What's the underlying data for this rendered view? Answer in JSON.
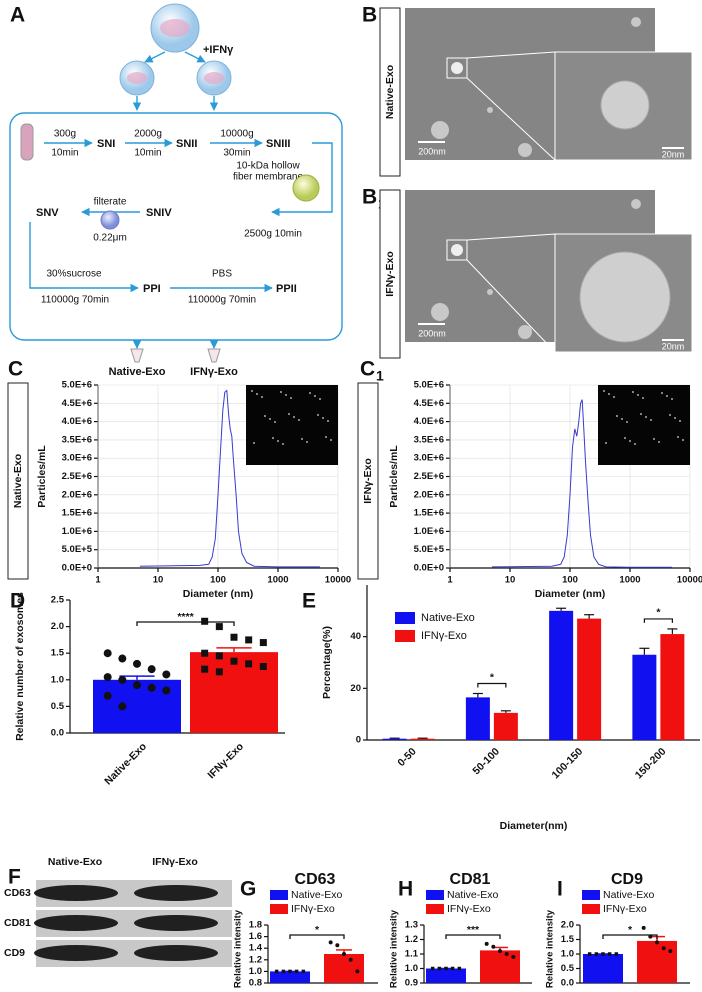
{
  "diagram": {
    "letter": "A",
    "treatment": "+IFNγ",
    "step1_speed": "300g",
    "step1_time": "10min",
    "sn1": "SNI",
    "step2_speed": "2000g",
    "step2_time": "10min",
    "sn2": "SNII",
    "step3_speed": "10000g",
    "step3_time": "30min",
    "sn3": "SNIII",
    "membrane_line1": "10-kDa hollow",
    "membrane_line2": "fiber membrane",
    "step4": "2500g  10min",
    "sn4": "SNIV",
    "filter_label": "filterate",
    "filter_size": "0.22μm",
    "sn5": "SNV",
    "step5_medium": "30%sucrose",
    "step5": "110000g  70min",
    "pp1": "PPI",
    "step6_medium": "PBS",
    "step6": "110000g  70min",
    "pp2": "PPII",
    "product1": "Native-Exo",
    "product2": "IFNγ-Exo"
  },
  "tem": [
    {
      "letter": "B",
      "side_label": "Native-Exo",
      "scale_overview": "200nm",
      "scale_zoom": "20nm"
    },
    {
      "letter": "B",
      "subscript": "1",
      "side_label": "IFNγ-Exo",
      "scale_overview": "200nm",
      "scale_zoom": "20nm"
    }
  ],
  "blot": {
    "letter": "F",
    "lanes": [
      "Native-Exo",
      "IFNγ-Exo"
    ],
    "proteins": [
      "CD63",
      "CD81",
      "CD9"
    ]
  },
  "chart_data": [
    {
      "type": "line",
      "panel": "C",
      "side_label": "Native-Exo",
      "xlabel": "Diameter (nm)",
      "ylabel": "Particles/mL",
      "xscale": "log",
      "grid": true,
      "color": "#3a3ad0",
      "x": [
        5,
        50,
        70,
        80,
        90,
        100,
        110,
        120,
        130,
        140,
        150,
        160,
        170,
        180,
        200,
        220,
        250,
        300,
        400,
        1000,
        5000
      ],
      "values": [
        50000,
        70000,
        100000,
        300000,
        800000,
        2000000,
        3200000,
        4300000,
        4800000,
        4850000,
        4200000,
        3800000,
        3600000,
        3000000,
        2000000,
        1000000,
        400000,
        150000,
        50000,
        30000,
        30000
      ],
      "xlim": [
        1,
        10000
      ],
      "xticks": [
        1,
        10,
        100,
        1000,
        10000
      ],
      "ylim": [
        0,
        5000000
      ],
      "yticks": [
        {
          "value": 0,
          "label": "0.0E+0"
        },
        {
          "value": 500000,
          "label": "5.0E+5"
        },
        {
          "value": 1000000,
          "label": "1.0E+6"
        },
        {
          "value": 1500000,
          "label": "1.5E+6"
        },
        {
          "value": 2000000,
          "label": "2.0E+6"
        },
        {
          "value": 2500000,
          "label": "2.5E+6"
        },
        {
          "value": 3000000,
          "label": "3.0E+6"
        },
        {
          "value": 3500000,
          "label": "3.5E+6"
        },
        {
          "value": 4000000,
          "label": "4.0E+6"
        },
        {
          "value": 4500000,
          "label": "4.5E+6"
        },
        {
          "value": 5000000,
          "label": "5.0E+6"
        }
      ]
    },
    {
      "type": "line",
      "panel": "C",
      "panel_subscript": "1",
      "side_label": "IFNγ-Exo",
      "xlabel": "Diameter (nm)",
      "ylabel": "Particles/mL",
      "xscale": "log",
      "grid": true,
      "color": "#3a3ad0",
      "x": [
        5,
        50,
        70,
        80,
        90,
        100,
        110,
        120,
        130,
        140,
        150,
        160,
        170,
        180,
        200,
        220,
        250,
        300,
        400,
        1000,
        5000
      ],
      "values": [
        30000,
        50000,
        100000,
        300000,
        900000,
        2000000,
        3300000,
        3800000,
        3600000,
        4000000,
        4500000,
        4600000,
        3800000,
        3000000,
        1800000,
        900000,
        300000,
        100000,
        30000,
        20000,
        20000
      ],
      "xlim": [
        1,
        10000
      ],
      "xticks": [
        1,
        10,
        100,
        1000,
        10000
      ],
      "ylim": [
        0,
        5000000
      ],
      "yticks": [
        {
          "value": 0,
          "label": "0.0E+0"
        },
        {
          "value": 500000,
          "label": "5.0E+5"
        },
        {
          "value": 1000000,
          "label": "1.0E+6"
        },
        {
          "value": 1500000,
          "label": "1.5E+6"
        },
        {
          "value": 2000000,
          "label": "2.0E+6"
        },
        {
          "value": 2500000,
          "label": "2.5E+6"
        },
        {
          "value": 3000000,
          "label": "3.0E+6"
        },
        {
          "value": 3500000,
          "label": "3.5E+6"
        },
        {
          "value": 4000000,
          "label": "4.0E+6"
        },
        {
          "value": 4500000,
          "label": "4.5E+6"
        },
        {
          "value": 5000000,
          "label": "5.0E+6"
        }
      ]
    },
    {
      "type": "bar-scatter",
      "panel": "D",
      "ylabel": "Relative number of exosomes",
      "legend": false,
      "categories": [
        "Native-Exo",
        "IFNγ-Exo"
      ],
      "colors": [
        "#1010f0",
        "#f01010"
      ],
      "values": [
        1.0,
        1.52
      ],
      "errors": [
        0.07,
        0.08
      ],
      "points": [
        [
          1.5,
          1.4,
          1.3,
          1.2,
          1.1,
          1.05,
          1.0,
          0.9,
          0.85,
          0.8,
          0.7,
          0.5
        ],
        [
          2.1,
          2.0,
          1.8,
          1.75,
          1.7,
          1.5,
          1.45,
          1.35,
          1.3,
          1.25,
          1.2,
          1.15
        ]
      ],
      "significance": "****",
      "ylim": [
        0,
        2.5
      ],
      "yticks": [
        {
          "value": 0,
          "label": "0.0"
        },
        0.5,
        {
          "value": 1,
          "label": "1.0"
        },
        1.5,
        {
          "value": 2,
          "label": "2.0"
        },
        2.5
      ]
    },
    {
      "type": "grouped-bar",
      "panel": "E",
      "xlabel": "Diameter(nm)",
      "ylabel": "Percentage(%)",
      "categories": [
        "0-50",
        "50-100",
        "100-150",
        "150-200"
      ],
      "series": [
        {
          "name": "Native-Exo",
          "color": "#1010f0",
          "values": [
            0.5,
            16.5,
            50,
            33
          ],
          "errors": [
            0.2,
            1.5,
            1,
            2.5
          ]
        },
        {
          "name": "IFNγ-Exo",
          "color": "#f01010",
          "values": [
            0.5,
            10.5,
            47,
            41
          ],
          "errors": [
            0.2,
            0.8,
            1.5,
            2
          ]
        }
      ],
      "significance": [
        null,
        "*",
        null,
        "*"
      ],
      "ylim": [
        0,
        60
      ],
      "yticks": [
        0,
        20,
        40
      ]
    },
    {
      "type": "bar-scatter",
      "panel": "G",
      "title": "CD63",
      "ylabel": "Relative intensity",
      "legend": true,
      "categories": [
        "Native-Exo",
        "IFNγ-Exo"
      ],
      "colors": [
        "#1010f0",
        "#f01010"
      ],
      "values": [
        1.0,
        1.3
      ],
      "errors": [
        0,
        0.07
      ],
      "points": [
        [
          1.0,
          1.0,
          1.0,
          1.0,
          1.0
        ],
        [
          1.5,
          1.45,
          1.3,
          1.2,
          1.0
        ]
      ],
      "significance": "*",
      "ylim": [
        0.8,
        1.8
      ],
      "yticks": [
        0.8,
        {
          "value": 1,
          "label": "1.0"
        },
        1.2,
        1.4,
        1.6,
        1.8
      ]
    },
    {
      "type": "bar-scatter",
      "panel": "H",
      "title": "CD81",
      "ylabel": "Relative intensity",
      "legend": true,
      "categories": [
        "Native-Exo",
        "IFNγ-Exo"
      ],
      "colors": [
        "#1010f0",
        "#f01010"
      ],
      "values": [
        1.0,
        1.125
      ],
      "errors": [
        0,
        0.02
      ],
      "points": [
        [
          1.0,
          1.0,
          1.0,
          1.0,
          1.0
        ],
        [
          1.17,
          1.15,
          1.12,
          1.1,
          1.08
        ]
      ],
      "significance": "***",
      "ylim": [
        0.9,
        1.3
      ],
      "yticks": [
        0.9,
        {
          "value": 1,
          "label": "1.0"
        },
        1.1,
        1.2,
        1.3
      ]
    },
    {
      "type": "bar-scatter",
      "panel": "I",
      "title": "CD9",
      "ylabel": "Relative intensity",
      "legend": true,
      "categories": [
        "Native-Exo",
        "IFNγ-Exo"
      ],
      "colors": [
        "#1010f0",
        "#f01010"
      ],
      "values": [
        1.0,
        1.45
      ],
      "errors": [
        0,
        0.15
      ],
      "points": [
        [
          1.0,
          1.0,
          1.0,
          1.0,
          1.0
        ],
        [
          1.9,
          1.6,
          1.4,
          1.2,
          1.1
        ]
      ],
      "significance": "*",
      "ylim": [
        0,
        2
      ],
      "yticks": [
        {
          "value": 0,
          "label": "0.0"
        },
        0.5,
        {
          "value": 1,
          "label": "1.0"
        },
        1.5,
        {
          "value": 2,
          "label": "2.0"
        }
      ]
    }
  ]
}
